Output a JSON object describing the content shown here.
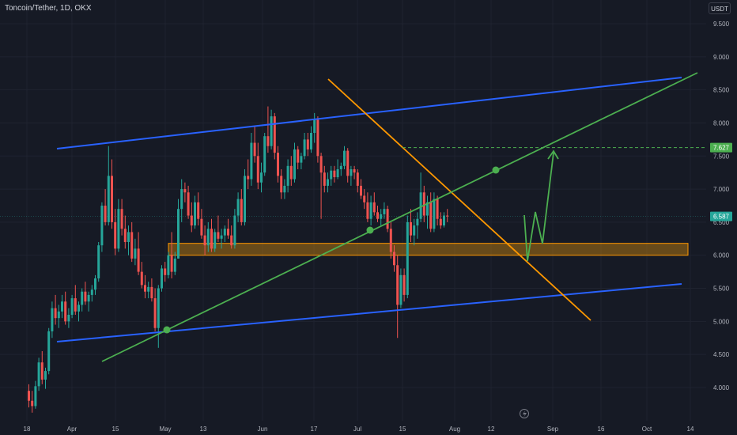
{
  "header": {
    "symbol_title": "Toncoin/Tether, 1D, OKX",
    "currency": "USDT"
  },
  "colors": {
    "background": "#161a25",
    "up": "#26a69a",
    "down": "#ef5350",
    "channel": "#2962ff",
    "downtrend": "#ff9800",
    "uptrend": "#4caf50",
    "zone_fill": "#b7790f",
    "zone_border": "#ff9800",
    "projection": "#4caf50",
    "axis_text": "#b2b5be"
  },
  "icons": {
    "bottom_center": "lightning-icon"
  },
  "price_badges": {
    "target": "7.627",
    "last": "6.587"
  },
  "chart_data": {
    "type": "candlestick",
    "title": "Toncoin/Tether, 1D, OKX",
    "x_tick_labels": [
      "18",
      "Apr",
      "15",
      "May",
      "13",
      "Jun",
      "17",
      "Jul",
      "15",
      "Aug",
      "12",
      "Sep",
      "16",
      "Oct",
      "14"
    ],
    "y_tick_labels": [
      "4.000",
      "4.500",
      "5.000",
      "5.500",
      "6.000",
      "6.500",
      "7.000",
      "7.500",
      "8.000",
      "8.500",
      "9.000",
      "9.500"
    ],
    "ylim": [
      3.6,
      9.8
    ],
    "series": [
      {
        "type": "ohlc",
        "ohlc": [
          [
            3.95,
            4.05,
            3.7,
            3.8
          ],
          [
            3.8,
            3.95,
            3.62,
            3.72
          ],
          [
            3.72,
            4.1,
            3.68,
            4.02
          ],
          [
            4.02,
            4.45,
            3.95,
            4.38
          ],
          [
            4.38,
            4.55,
            4.05,
            4.12
          ],
          [
            4.12,
            4.3,
            3.98,
            4.25
          ],
          [
            4.25,
            4.9,
            4.2,
            4.85
          ],
          [
            4.85,
            5.3,
            4.75,
            5.2
          ],
          [
            5.2,
            5.4,
            4.95,
            5.05
          ],
          [
            5.05,
            5.25,
            4.9,
            5.15
          ],
          [
            5.15,
            5.4,
            5.05,
            5.3
          ],
          [
            5.3,
            5.45,
            4.95,
            5.0
          ],
          [
            5.0,
            5.2,
            4.9,
            5.1
          ],
          [
            5.1,
            5.4,
            5.05,
            5.35
          ],
          [
            5.35,
            5.55,
            5.1,
            5.15
          ],
          [
            5.15,
            5.3,
            5.0,
            5.25
          ],
          [
            5.25,
            5.5,
            5.15,
            5.45
          ],
          [
            5.45,
            5.6,
            5.25,
            5.3
          ],
          [
            5.3,
            5.45,
            5.15,
            5.4
          ],
          [
            5.4,
            5.55,
            5.3,
            5.48
          ],
          [
            5.48,
            5.7,
            5.4,
            5.65
          ],
          [
            5.65,
            6.2,
            5.6,
            6.15
          ],
          [
            6.15,
            6.8,
            6.05,
            6.75
          ],
          [
            6.75,
            7.0,
            6.45,
            6.5
          ],
          [
            6.5,
            7.65,
            6.45,
            7.2
          ],
          [
            7.2,
            7.45,
            6.4,
            6.5
          ],
          [
            6.5,
            6.7,
            6.0,
            6.1
          ],
          [
            6.1,
            6.85,
            6.05,
            6.7
          ],
          [
            6.7,
            6.85,
            6.3,
            6.4
          ],
          [
            6.4,
            6.6,
            6.1,
            6.2
          ],
          [
            6.2,
            6.45,
            6.0,
            6.35
          ],
          [
            6.35,
            6.5,
            5.9,
            5.95
          ],
          [
            5.95,
            6.25,
            5.85,
            6.1
          ],
          [
            6.1,
            6.35,
            5.7,
            5.75
          ],
          [
            5.75,
            5.9,
            5.5,
            5.55
          ],
          [
            5.55,
            5.7,
            5.35,
            5.45
          ],
          [
            5.45,
            5.6,
            5.35,
            5.52
          ],
          [
            5.52,
            5.65,
            5.3,
            5.35
          ],
          [
            5.35,
            5.5,
            4.85,
            4.9
          ],
          [
            4.9,
            5.55,
            4.6,
            5.5
          ],
          [
            5.5,
            5.85,
            5.45,
            5.8
          ],
          [
            5.8,
            5.9,
            5.6,
            5.7
          ],
          [
            5.7,
            6.05,
            5.65,
            6.0
          ],
          [
            6.0,
            6.35,
            5.65,
            5.75
          ],
          [
            5.75,
            6.05,
            5.7,
            5.95
          ],
          [
            5.95,
            6.85,
            5.95,
            6.7
          ],
          [
            6.7,
            7.15,
            6.5,
            7.0
          ],
          [
            7.0,
            7.1,
            6.8,
            6.95
          ],
          [
            6.95,
            7.05,
            6.55,
            6.6
          ],
          [
            6.6,
            6.8,
            6.35,
            6.45
          ],
          [
            6.45,
            6.9,
            6.4,
            6.8
          ],
          [
            6.8,
            6.95,
            6.45,
            6.55
          ],
          [
            6.55,
            6.7,
            6.25,
            6.3
          ],
          [
            6.3,
            6.45,
            6.0,
            6.15
          ],
          [
            6.15,
            6.5,
            6.05,
            6.4
          ],
          [
            6.4,
            6.55,
            6.05,
            6.1
          ],
          [
            6.1,
            6.4,
            6.05,
            6.35
          ],
          [
            6.35,
            6.6,
            6.2,
            6.25
          ],
          [
            6.25,
            6.4,
            6.1,
            6.3
          ],
          [
            6.3,
            6.45,
            6.2,
            6.4
          ],
          [
            6.4,
            6.55,
            6.25,
            6.3
          ],
          [
            6.3,
            6.45,
            6.1,
            6.15
          ],
          [
            6.15,
            6.7,
            6.1,
            6.6
          ],
          [
            6.6,
            6.95,
            6.5,
            6.85
          ],
          [
            6.85,
            7.0,
            6.45,
            6.5
          ],
          [
            6.5,
            7.3,
            6.45,
            7.2
          ],
          [
            7.2,
            7.45,
            7.0,
            7.15
          ],
          [
            7.15,
            7.85,
            7.05,
            7.7
          ],
          [
            7.7,
            7.95,
            7.4,
            7.5
          ],
          [
            7.5,
            7.7,
            7.0,
            7.1
          ],
          [
            7.1,
            7.4,
            6.95,
            7.25
          ],
          [
            7.25,
            7.85,
            7.2,
            7.8
          ],
          [
            7.8,
            8.25,
            7.55,
            7.65
          ],
          [
            7.65,
            8.2,
            7.6,
            8.1
          ],
          [
            8.1,
            8.15,
            7.45,
            7.55
          ],
          [
            7.55,
            7.65,
            7.1,
            7.2
          ],
          [
            7.2,
            7.3,
            6.85,
            6.95
          ],
          [
            6.95,
            7.15,
            6.85,
            7.05
          ],
          [
            7.05,
            7.45,
            6.95,
            7.35
          ],
          [
            7.35,
            7.5,
            7.05,
            7.15
          ],
          [
            7.15,
            7.7,
            7.1,
            7.6
          ],
          [
            7.6,
            7.65,
            7.3,
            7.4
          ],
          [
            7.4,
            7.55,
            7.3,
            7.5
          ],
          [
            7.5,
            7.85,
            7.45,
            7.75
          ],
          [
            7.75,
            7.85,
            7.5,
            7.6
          ],
          [
            7.6,
            7.95,
            7.55,
            7.85
          ],
          [
            7.85,
            8.15,
            7.7,
            8.05
          ],
          [
            8.05,
            8.1,
            7.4,
            7.5
          ],
          [
            7.5,
            7.55,
            6.55,
            7.25
          ],
          [
            7.25,
            7.35,
            6.95,
            7.05
          ],
          [
            7.05,
            7.25,
            6.95,
            7.15
          ],
          [
            7.15,
            7.35,
            7.05,
            7.28
          ],
          [
            7.28,
            7.35,
            7.1,
            7.18
          ],
          [
            7.18,
            7.45,
            7.15,
            7.3
          ],
          [
            7.3,
            7.4,
            7.2,
            7.35
          ],
          [
            7.35,
            7.65,
            7.3,
            7.58
          ],
          [
            7.58,
            7.62,
            7.1,
            7.2
          ],
          [
            7.2,
            7.35,
            7.05,
            7.3
          ],
          [
            7.3,
            7.35,
            7.15,
            7.25
          ],
          [
            7.25,
            7.3,
            6.95,
            7.05
          ],
          [
            7.05,
            7.15,
            6.85,
            6.9
          ],
          [
            6.9,
            7.0,
            6.7,
            6.8
          ],
          [
            6.8,
            6.95,
            6.5,
            6.55
          ],
          [
            6.55,
            6.9,
            6.45,
            6.8
          ],
          [
            6.8,
            6.95,
            6.6,
            6.65
          ],
          [
            6.65,
            6.75,
            6.5,
            6.55
          ],
          [
            6.55,
            6.7,
            6.45,
            6.62
          ],
          [
            6.62,
            6.8,
            6.55,
            6.7
          ],
          [
            6.7,
            6.75,
            6.35,
            6.4
          ],
          [
            6.4,
            6.5,
            5.95,
            6.05
          ],
          [
            6.05,
            6.15,
            5.75,
            5.85
          ],
          [
            5.85,
            6.0,
            4.75,
            5.25
          ],
          [
            5.25,
            5.8,
            5.2,
            5.7
          ],
          [
            5.7,
            5.8,
            5.3,
            5.4
          ],
          [
            5.4,
            6.6,
            5.35,
            6.5
          ],
          [
            6.5,
            6.7,
            6.2,
            6.3
          ],
          [
            6.3,
            6.55,
            6.15,
            6.45
          ],
          [
            6.45,
            6.65,
            6.25,
            6.55
          ],
          [
            6.55,
            7.25,
            6.5,
            6.95
          ],
          [
            6.95,
            7.05,
            6.5,
            6.6
          ],
          [
            6.6,
            6.9,
            6.4,
            6.8
          ],
          [
            6.8,
            6.95,
            6.35,
            6.4
          ],
          [
            6.4,
            6.95,
            6.35,
            6.85
          ],
          [
            6.85,
            6.9,
            6.45,
            6.55
          ],
          [
            6.55,
            6.65,
            6.4,
            6.45
          ],
          [
            6.45,
            6.65,
            6.42,
            6.6
          ],
          [
            6.6,
            6.7,
            6.5,
            6.587
          ]
        ]
      }
    ],
    "annotations": {
      "channel_upper_label": "",
      "target_price": 7.627,
      "support_zone": [
        6.0,
        6.18
      ]
    },
    "grid": true,
    "price_axis": "right"
  }
}
